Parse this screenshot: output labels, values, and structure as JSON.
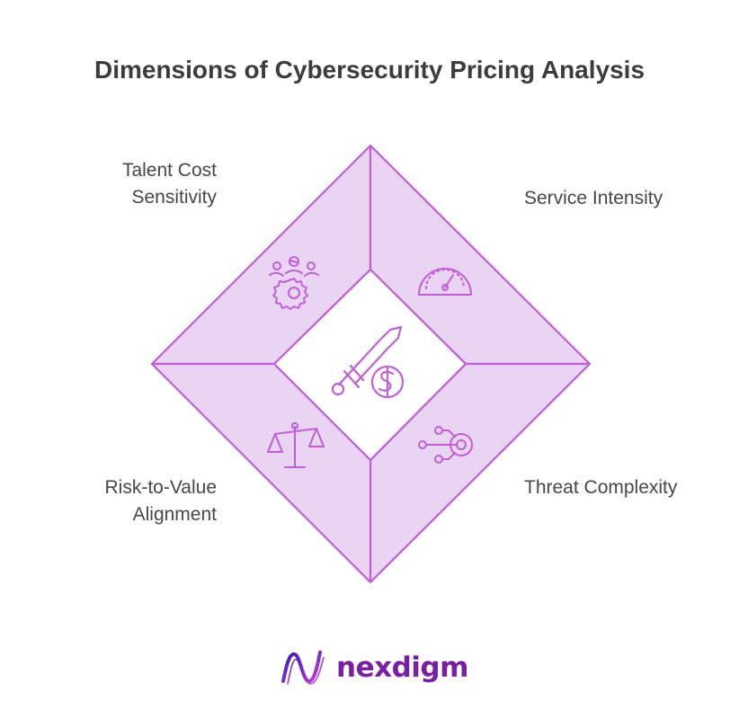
{
  "title": "Dimensions of Cybersecurity Pricing Analysis",
  "dimensions": [
    {
      "id": "talent",
      "lines": [
        "Talent Cost",
        "Sensitivity"
      ],
      "icon": "team-gear-icon"
    },
    {
      "id": "service",
      "lines": [
        "Service Intensity"
      ],
      "icon": "speedometer-icon"
    },
    {
      "id": "risk",
      "lines": [
        "Risk-to-Value",
        "Alignment"
      ],
      "icon": "balance-scale-icon"
    },
    {
      "id": "threat",
      "lines": [
        "Threat Complexity"
      ],
      "icon": "network-target-icon"
    }
  ],
  "center": {
    "icon": "sword-dollar-icon"
  },
  "brand": {
    "name": "nexdigm",
    "icon": "nexdigm-logo-icon"
  },
  "colors": {
    "fill": "#e9d4f3",
    "stroke": "#c05fd8",
    "center_fill": "#ffffff",
    "title": "#3c3c3c",
    "label": "#474747",
    "brand": "#7b1fa2"
  }
}
